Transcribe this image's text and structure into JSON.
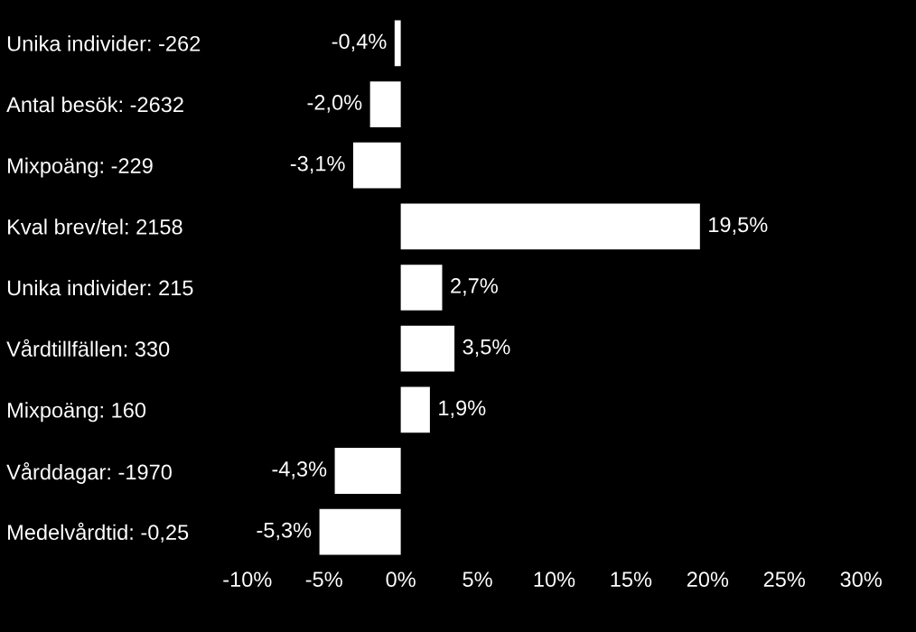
{
  "chart_data": {
    "type": "bar",
    "orientation": "horizontal",
    "categories": [
      "Unika individer: -262",
      "Antal besök: -2632",
      "Mixpoäng: -229",
      "Kval brev/tel: 2158",
      "Unika individer: 215",
      "Vårdtillfällen: 330",
      "Mixpoäng: 160",
      "Vårddagar: -1970",
      "Medelvårdtid: -0,25"
    ],
    "values": [
      -0.4,
      -2.0,
      -3.1,
      19.5,
      2.7,
      3.5,
      1.9,
      -4.3,
      -5.3
    ],
    "value_labels": [
      "-0,4%",
      "-2,0%",
      "-3,1%",
      "19,5%",
      "2,7%",
      "3,5%",
      "1,9%",
      "-4,3%",
      "-5,3%"
    ],
    "color": "#ffffff",
    "xlim": [
      -10,
      30
    ],
    "xticks": [
      {
        "value": -10,
        "label": "-10%"
      },
      {
        "value": -5,
        "label": "-5%"
      },
      {
        "value": 0,
        "label": "0%"
      },
      {
        "value": 5,
        "label": "5%"
      },
      {
        "value": 10,
        "label": "10%"
      },
      {
        "value": 15,
        "label": "15%"
      },
      {
        "value": 20,
        "label": "20%"
      },
      {
        "value": 25,
        "label": "25%"
      },
      {
        "value": 30,
        "label": "30%"
      }
    ],
    "grid": false,
    "legend": false
  }
}
